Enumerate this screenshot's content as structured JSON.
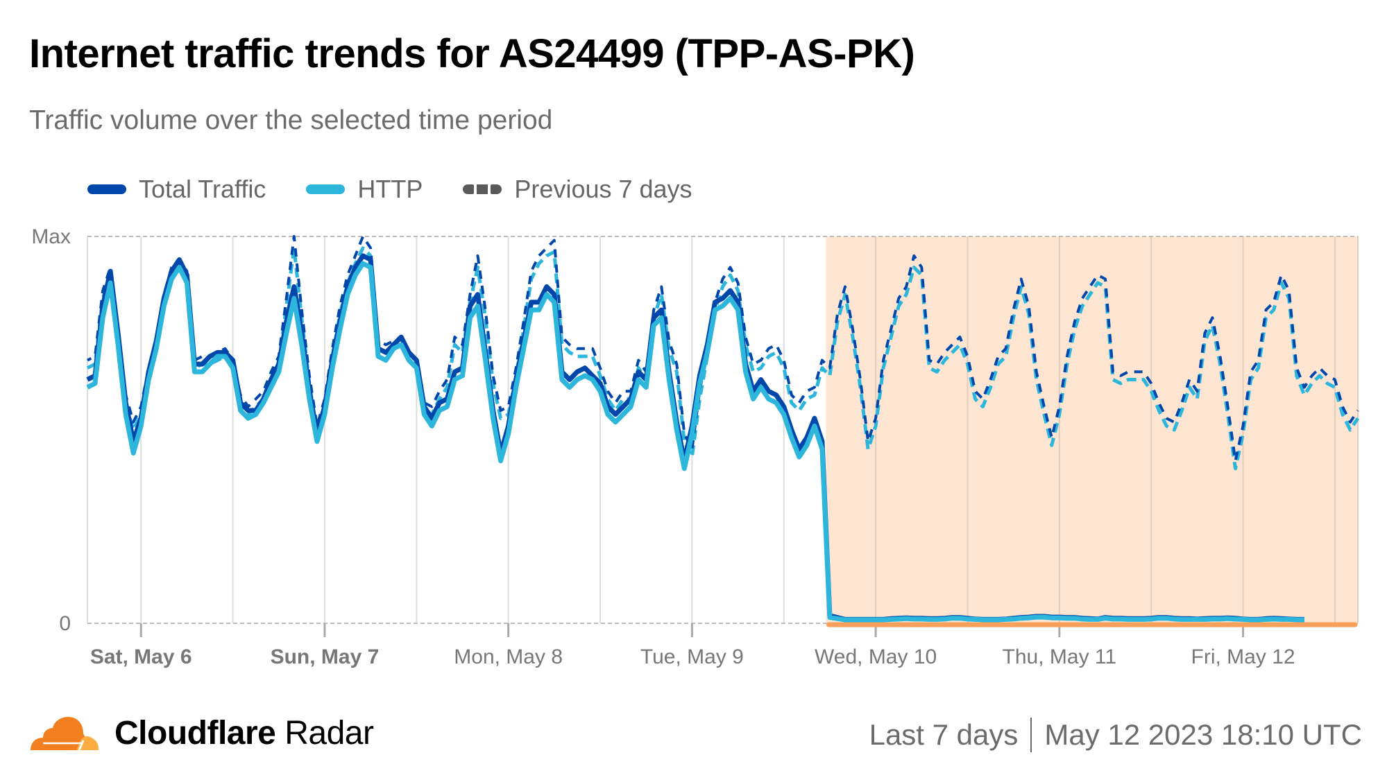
{
  "header": {
    "title": "Internet traffic trends for AS24499 (TPP-AS-PK)",
    "subtitle": "Traffic volume over the selected time period"
  },
  "legend": [
    {
      "label": "Total Traffic",
      "color": "#0047ab",
      "style": "solid"
    },
    {
      "label": "HTTP",
      "color": "#2db6dc",
      "style": "solid"
    },
    {
      "label": "Previous 7 days",
      "color": "#5a5a5a",
      "style": "dashed"
    }
  ],
  "footer": {
    "brand_bold": "Cloudflare",
    "brand_light": "Radar",
    "range": "Last 7 days",
    "timestamp": "May 12 2023 18:10 UTC"
  },
  "colors": {
    "total": "#0047ab",
    "http": "#2db6dc",
    "outage_fill": "#fde5d2",
    "outage_line": "#f6a05a",
    "grid": "#dddddd",
    "logo_orange": "#f38020",
    "logo_light": "#fbad41"
  },
  "chart_data": {
    "type": "line",
    "title": "Internet traffic trends for AS24499 (TPP-AS-PK)",
    "ylabel": "",
    "xlabel": "",
    "y_tick_labels": [
      "Max",
      "0"
    ],
    "ylim": [
      0,
      100
    ],
    "x_tick_labels": [
      {
        "label": "Sat, May 6",
        "bold": true,
        "hour": 7
      },
      {
        "label": "Sun, May 7",
        "bold": true,
        "hour": 31
      },
      {
        "label": "Mon, May 8",
        "bold": false,
        "hour": 55
      },
      {
        "label": "Tue, May 9",
        "bold": false,
        "hour": 79
      },
      {
        "label": "Wed, May 10",
        "bold": false,
        "hour": 103
      },
      {
        "label": "Thu, May 11",
        "bold": false,
        "hour": 127
      },
      {
        "label": "Fri, May 12",
        "bold": false,
        "hour": 151
      }
    ],
    "x_range_hours": [
      0,
      166
    ],
    "outage_start_hour": 96.5,
    "series": [
      {
        "name": "Total Traffic",
        "values": [
          63,
          64,
          82,
          91,
          75,
          57,
          47,
          53,
          65,
          73,
          84,
          91,
          94,
          90,
          67,
          67,
          69,
          70,
          70,
          68,
          57,
          55,
          55,
          58,
          63,
          67,
          78,
          87,
          75,
          60,
          49,
          56,
          68,
          78,
          87,
          92,
          95,
          94,
          71,
          70,
          72,
          74,
          70,
          68,
          56,
          53,
          57,
          58,
          65,
          66,
          82,
          85,
          70,
          55,
          44,
          51,
          63,
          73,
          83,
          83,
          87,
          85,
          65,
          63,
          65,
          66,
          64,
          62,
          56,
          54,
          56,
          58,
          65,
          63,
          79,
          81,
          65,
          52,
          42,
          51,
          64,
          72,
          83,
          84,
          86,
          83,
          67,
          60,
          63,
          60,
          59,
          56,
          50,
          45,
          48,
          53,
          47,
          2,
          1.5,
          1,
          1,
          1,
          1,
          1,
          1,
          1.2,
          1.3,
          1.4,
          1.3,
          1.3,
          1.2,
          1.2,
          1.3,
          1.5,
          1.5,
          1.3,
          1.1,
          1,
          1,
          1,
          1.1,
          1.3,
          1.5,
          1.6,
          1.8,
          1.8,
          1.6,
          1.6,
          1.5,
          1.5,
          1.3,
          1.2,
          1.1,
          1.5,
          1.3,
          1.3,
          1.2,
          1.2,
          1.2,
          1.3,
          1.5,
          1.5,
          1.3,
          1.2,
          1.2,
          1.1,
          1.2,
          1.3,
          1.3,
          1.4,
          1.3,
          1.1,
          1,
          1,
          1.2,
          1.3,
          1.2,
          1.1,
          1,
          1
        ]
      },
      {
        "name": "HTTP",
        "values": [
          61,
          62,
          79,
          88,
          72,
          54,
          44,
          51,
          63,
          71,
          82,
          89,
          92,
          88,
          65,
          65,
          67,
          69,
          69,
          66,
          55,
          53,
          54,
          57,
          61,
          65,
          75,
          84,
          72,
          58,
          47,
          54,
          66,
          76,
          85,
          90,
          93,
          92,
          69,
          68,
          71,
          72,
          68,
          66,
          54,
          51,
          55,
          56,
          63,
          64,
          79,
          82,
          68,
          53,
          42,
          49,
          61,
          71,
          81,
          81,
          85,
          83,
          63,
          61,
          63,
          64,
          63,
          60,
          54,
          52,
          54,
          56,
          63,
          61,
          77,
          79,
          63,
          50,
          40,
          49,
          62,
          70,
          81,
          82,
          84,
          81,
          65,
          58,
          61,
          58,
          57,
          54,
          48,
          43,
          46,
          51,
          45,
          1.5,
          1.2,
          0.9,
          0.9,
          0.9,
          0.9,
          0.9,
          0.9,
          1,
          1.1,
          1.2,
          1.1,
          1.1,
          1,
          1,
          1.1,
          1.3,
          1.3,
          1.1,
          1,
          0.9,
          0.9,
          0.9,
          1,
          1.1,
          1.3,
          1.4,
          1.6,
          1.6,
          1.4,
          1.4,
          1.3,
          1.3,
          1.1,
          1,
          1,
          1.3,
          1.1,
          1.1,
          1,
          1,
          1,
          1.1,
          1.3,
          1.3,
          1.1,
          1,
          1,
          1,
          1,
          1.1,
          1.1,
          1.2,
          1.1,
          1,
          0.9,
          0.9,
          1,
          1.1,
          1,
          1,
          0.9,
          0.9
        ]
      },
      {
        "name": "Previous 7 days (Total Traffic)",
        "values": [
          68,
          69,
          86,
          92,
          76,
          59,
          52,
          56,
          66,
          74,
          85,
          92,
          94,
          91,
          68,
          69,
          69,
          70,
          71,
          68,
          59,
          56,
          58,
          60,
          65,
          69,
          84,
          100,
          81,
          64,
          51,
          58,
          71,
          82,
          90,
          95,
          100,
          97,
          73,
          72,
          73,
          74,
          70,
          68,
          57,
          56,
          60,
          63,
          74,
          72,
          85,
          95,
          81,
          64,
          55,
          56,
          66,
          78,
          91,
          95,
          97,
          99,
          74,
          72,
          71,
          71,
          71,
          66,
          60,
          57,
          60,
          60,
          68,
          65,
          81,
          87,
          73,
          67,
          49,
          45,
          60,
          71,
          83,
          89,
          92,
          88,
          74,
          67,
          68,
          71,
          72,
          68,
          59,
          57,
          60,
          61,
          68,
          66,
          80,
          87,
          76,
          63,
          47,
          53,
          68,
          76,
          84,
          87,
          95,
          92,
          68,
          67,
          70,
          72,
          74,
          69,
          60,
          58,
          63,
          69,
          71,
          81,
          89,
          82,
          65,
          56,
          48,
          56,
          69,
          78,
          84,
          87,
          90,
          89,
          65,
          64,
          65,
          65,
          65,
          62,
          57,
          53,
          52,
          57,
          63,
          60,
          75,
          79,
          69,
          56,
          42,
          51,
          65,
          68,
          81,
          83,
          90,
          86,
          66,
          61,
          64,
          66,
          64,
          63,
          56,
          52,
          55
        ]
      },
      {
        "name": "Previous 7 days (HTTP)",
        "values": [
          66,
          67,
          84,
          90,
          74,
          57,
          50,
          54,
          64,
          72,
          83,
          90,
          92,
          89,
          66,
          67,
          67,
          68,
          69,
          66,
          57,
          54,
          56,
          58,
          63,
          67,
          82,
          97,
          79,
          62,
          49,
          56,
          69,
          80,
          88,
          93,
          97,
          95,
          71,
          70,
          71,
          72,
          68,
          66,
          55,
          54,
          58,
          61,
          72,
          70,
          83,
          92,
          79,
          62,
          53,
          54,
          64,
          76,
          89,
          93,
          95,
          96,
          72,
          70,
          69,
          69,
          69,
          64,
          58,
          55,
          58,
          58,
          66,
          63,
          79,
          85,
          71,
          65,
          47,
          43,
          58,
          69,
          81,
          87,
          90,
          86,
          72,
          65,
          66,
          69,
          70,
          66,
          57,
          55,
          58,
          59,
          66,
          64,
          78,
          85,
          74,
          61,
          45,
          51,
          66,
          74,
          82,
          85,
          92,
          90,
          66,
          65,
          68,
          70,
          72,
          67,
          58,
          56,
          61,
          67,
          69,
          79,
          87,
          80,
          63,
          54,
          46,
          54,
          67,
          76,
          82,
          85,
          88,
          87,
          63,
          62,
          63,
          63,
          63,
          60,
          55,
          51,
          50,
          55,
          61,
          58,
          73,
          77,
          67,
          54,
          40,
          49,
          63,
          66,
          79,
          81,
          88,
          84,
          64,
          59,
          62,
          64,
          62,
          61,
          54,
          50,
          53
        ]
      }
    ]
  }
}
